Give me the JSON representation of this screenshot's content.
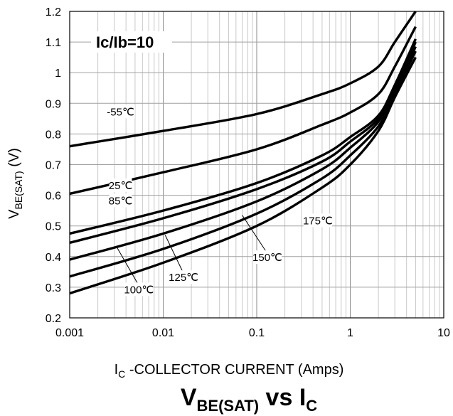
{
  "chart_data": {
    "type": "line",
    "title_main": "V",
    "title_main_sub": "BE(SAT)",
    "title_mid": " vs I",
    "title_end_sub": "C",
    "xlabel_main": "I",
    "xlabel_sub": "C",
    "xlabel_rest": " -COLLECTOR CURRENT (Amps)",
    "ylabel_main": "V",
    "ylabel_sub": "BE(SAT)",
    "ylabel_rest": " (V)",
    "annotation": "Ic/Ib=10",
    "x_scale": "log",
    "xlim": [
      0.001,
      10
    ],
    "ylim": [
      0.2,
      1.2
    ],
    "x_ticks": [
      "0.001",
      "0.01",
      "0.1",
      "1",
      "10"
    ],
    "y_ticks": [
      "0.2",
      "0.3",
      "0.4",
      "0.5",
      "0.6",
      "0.7",
      "0.8",
      "0.9",
      "1",
      "1.1",
      "1.2"
    ],
    "grid": true,
    "series": [
      {
        "name": "-55℃",
        "x": [
          0.001,
          0.01,
          0.1,
          0.5,
          1,
          2,
          3,
          5
        ],
        "y": [
          0.76,
          0.81,
          0.865,
          0.93,
          0.965,
          1.02,
          1.1,
          1.2
        ]
      },
      {
        "name": "25℃",
        "x": [
          0.001,
          0.01,
          0.1,
          0.5,
          1,
          2,
          3,
          5
        ],
        "y": [
          0.605,
          0.675,
          0.75,
          0.83,
          0.87,
          0.93,
          1.02,
          1.15
        ]
      },
      {
        "name": "85℃",
        "x": [
          0.001,
          0.01,
          0.1,
          0.5,
          1,
          2,
          3,
          5
        ],
        "y": [
          0.475,
          0.55,
          0.64,
          0.73,
          0.79,
          0.86,
          0.96,
          1.11
        ]
      },
      {
        "name": "100℃",
        "x": [
          0.001,
          0.01,
          0.1,
          0.5,
          1,
          2,
          3,
          5
        ],
        "y": [
          0.445,
          0.525,
          0.62,
          0.71,
          0.775,
          0.85,
          0.95,
          1.1
        ]
      },
      {
        "name": "125℃",
        "x": [
          0.001,
          0.01,
          0.1,
          0.5,
          1,
          2,
          3,
          5
        ],
        "y": [
          0.39,
          0.475,
          0.58,
          0.685,
          0.755,
          0.84,
          0.94,
          1.085
        ]
      },
      {
        "name": "150℃",
        "x": [
          0.001,
          0.01,
          0.1,
          0.5,
          1,
          2,
          3,
          5
        ],
        "y": [
          0.335,
          0.425,
          0.54,
          0.655,
          0.73,
          0.825,
          0.93,
          1.07
        ]
      },
      {
        "name": "175℃",
        "x": [
          0.001,
          0.01,
          0.1,
          0.5,
          1,
          2,
          3,
          5
        ],
        "y": [
          0.28,
          0.38,
          0.5,
          0.625,
          0.7,
          0.81,
          0.92,
          1.05
        ]
      }
    ]
  }
}
